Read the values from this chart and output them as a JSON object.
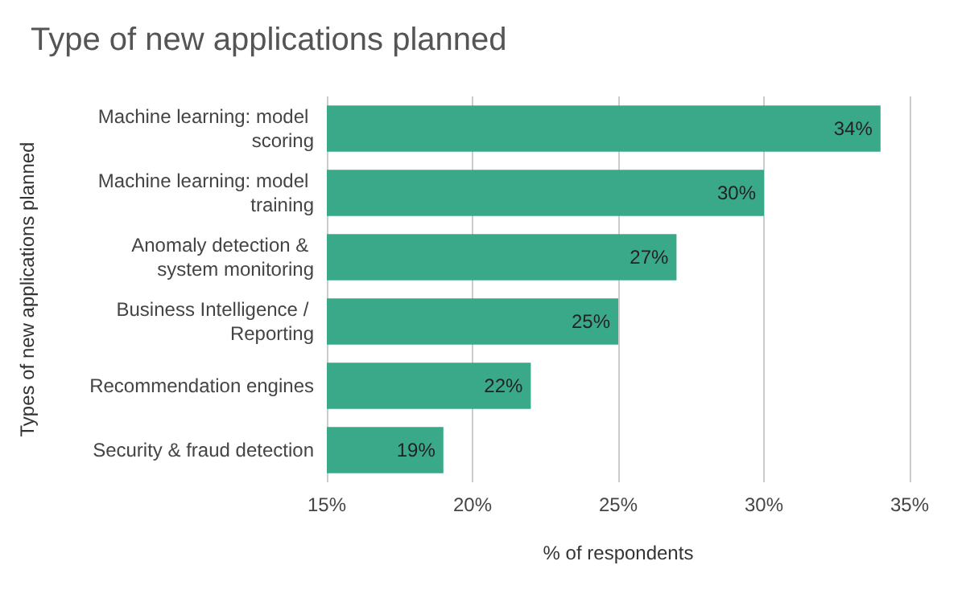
{
  "chart_data": {
    "type": "bar",
    "orientation": "horizontal",
    "title": "Type of new applications planned",
    "xlabel": "% of respondents",
    "ylabel": "Types of new applications planned",
    "categories": [
      "Machine learning: model scoring",
      "Machine learning: model training",
      "Anomaly detection & system monitoring",
      "Business Intelligence / Reporting",
      "Recommendation engines",
      "Security & fraud detection"
    ],
    "values": [
      34,
      30,
      27,
      25,
      22,
      19
    ],
    "value_labels": [
      "34%",
      "30%",
      "27%",
      "25%",
      "22%",
      "19%"
    ],
    "color": "#3aa98a",
    "xlim": [
      15,
      35
    ],
    "xticks": [
      {
        "value": 15,
        "label": "15%"
      },
      {
        "value": 20,
        "label": "20%"
      },
      {
        "value": 25,
        "label": "25%"
      },
      {
        "value": 30,
        "label": "30%"
      },
      {
        "value": 35,
        "label": "35%"
      }
    ],
    "grid": "x"
  }
}
